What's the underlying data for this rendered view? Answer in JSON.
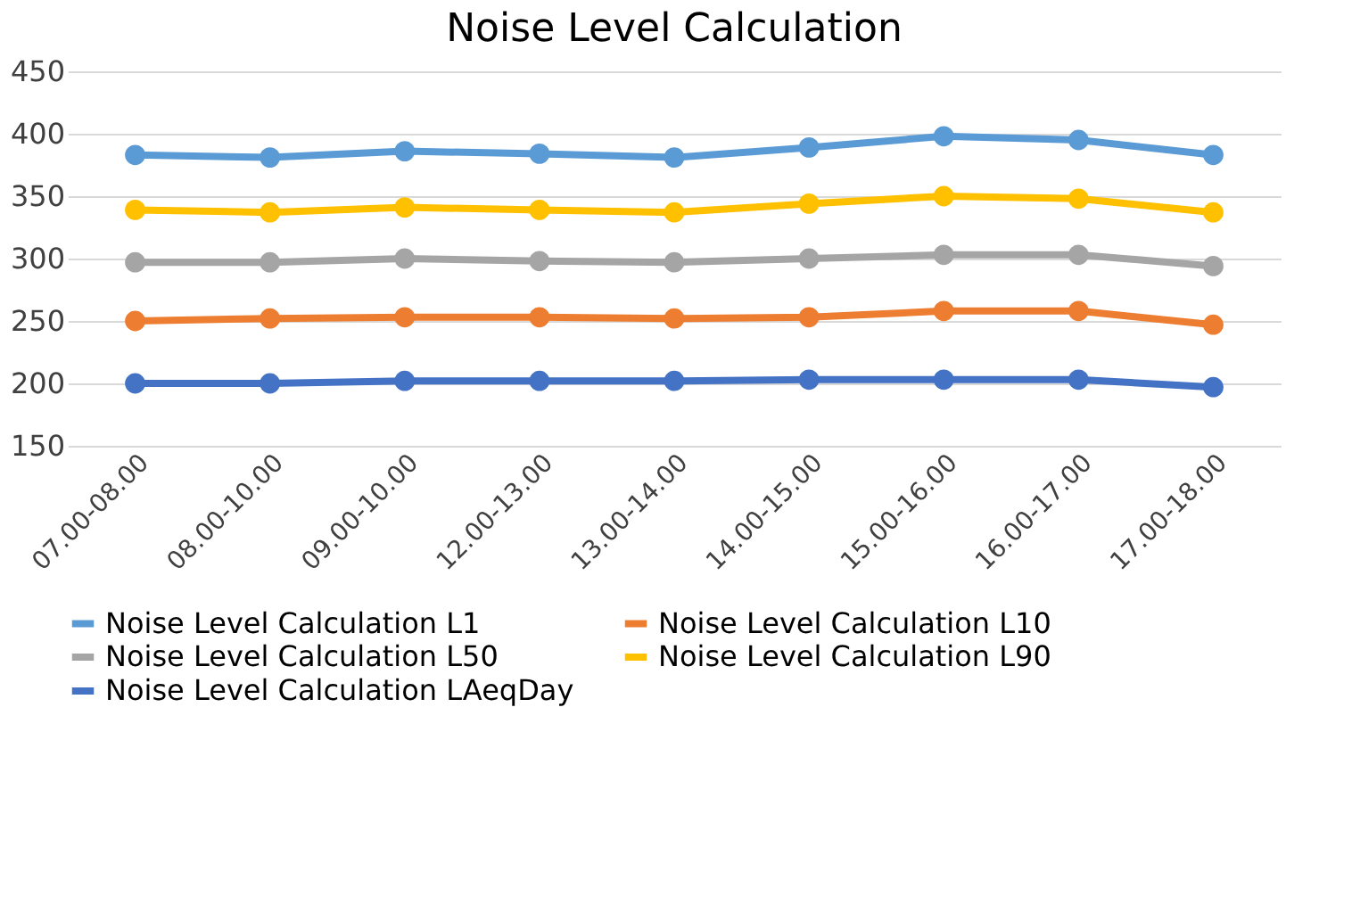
{
  "chart_data": {
    "type": "line",
    "title": "Noise Level Calculation",
    "categories": [
      "07.00-08.00",
      "08.00-10.00",
      "09.00-10.00",
      "12.00-13.00",
      "13.00-14.00",
      "14.00-15.00",
      "15.00-16.00",
      "16.00-17.00",
      "17.00-18.00"
    ],
    "series": [
      {
        "name": "Noise Level Calculation L1",
        "color": "#5b9bd5",
        "values": [
          383,
          381,
          386,
          384,
          381,
          389,
          398,
          395,
          383
        ]
      },
      {
        "name": "Noise Level Calculation L10",
        "color": "#ed7d31",
        "values": [
          250,
          252,
          253,
          253,
          252,
          253,
          258,
          258,
          247
        ]
      },
      {
        "name": "Noise Level Calculation L50",
        "color": "#a5a5a5",
        "values": [
          297,
          297,
          300,
          298,
          297,
          300,
          303,
          303,
          294
        ]
      },
      {
        "name": "Noise Level Calculation L90",
        "color": "#ffc000",
        "values": [
          339,
          337,
          341,
          339,
          337,
          344,
          350,
          348,
          337
        ]
      },
      {
        "name": "Noise Level Calculation LAeqDay",
        "color": "#4472c4",
        "values": [
          200,
          200,
          202,
          202,
          202,
          203,
          203,
          203,
          197
        ]
      }
    ],
    "ylim": [
      150,
      450
    ],
    "yticks": [
      150,
      200,
      250,
      300,
      350,
      400,
      450
    ],
    "grid": "y",
    "legend": "bottom",
    "marker": "circle",
    "line_style": "solid"
  }
}
